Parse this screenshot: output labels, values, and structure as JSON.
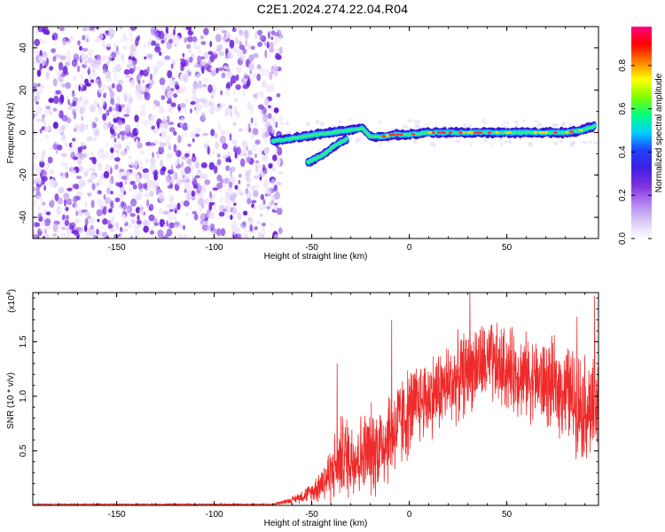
{
  "title": "C2E1.2024.274.22.04.R04",
  "colors": {
    "snr_line": "#ee2a2a",
    "background": "#ffffff",
    "axis": "#000000",
    "colormap": [
      "#ffffff",
      "#d8c8f5",
      "#b080f0",
      "#8030e0",
      "#4020e0",
      "#2040ff",
      "#00d0ff",
      "#00ff80",
      "#80ff00",
      "#ffff00",
      "#ff8000",
      "#ff0000",
      "#ff0080"
    ]
  },
  "chart_data": [
    {
      "type": "heatmap",
      "id": "spectrogram",
      "title": "",
      "xlabel": "Height of straight line (km)",
      "ylabel": "Frequency (Hz)",
      "xlim": [
        -193,
        97
      ],
      "ylim": [
        -50,
        50
      ],
      "x_ticks": [
        -150,
        -100,
        -50,
        0,
        50
      ],
      "y_ticks": [
        -40,
        -20,
        0,
        20,
        40
      ],
      "grid": false,
      "colorbar": {
        "label": "Normalized spectral amplitude",
        "range": [
          0,
          0.98
        ],
        "ticks": [
          0.0,
          0.2,
          0.4,
          0.6,
          0.8
        ]
      },
      "noise_region_x": [
        -193,
        -70
      ],
      "ridge": [
        {
          "x": -70,
          "y": -4
        },
        {
          "x": -62,
          "y": -3
        },
        {
          "x": -55,
          "y": -2
        },
        {
          "x": -48,
          "y": -1
        },
        {
          "x": -40,
          "y": 0
        },
        {
          "x": -32,
          "y": 1
        },
        {
          "x": -24,
          "y": 2
        },
        {
          "x": -20,
          "y": -2
        },
        {
          "x": -15,
          "y": -2
        },
        {
          "x": -8,
          "y": -1
        },
        {
          "x": 0,
          "y": -1
        },
        {
          "x": 10,
          "y": 0
        },
        {
          "x": 20,
          "y": 0
        },
        {
          "x": 30,
          "y": 0
        },
        {
          "x": 40,
          "y": 0
        },
        {
          "x": 50,
          "y": 0
        },
        {
          "x": 60,
          "y": 0
        },
        {
          "x": 70,
          "y": 0
        },
        {
          "x": 80,
          "y": 0
        },
        {
          "x": 88,
          "y": 1
        },
        {
          "x": 95,
          "y": 3
        }
      ],
      "secondary_ridge": [
        {
          "x": -52,
          "y": -14
        },
        {
          "x": -45,
          "y": -11
        },
        {
          "x": -38,
          "y": -6
        },
        {
          "x": -32,
          "y": -3
        }
      ]
    },
    {
      "type": "line",
      "id": "snr",
      "title": "",
      "xlabel": "Height of straight line (km)",
      "ylabel": "SNR (10 * v/v)",
      "multiplier_label": "(x10",
      "multiplier_exp": "4",
      "xlim": [
        -193,
        97
      ],
      "ylim": [
        0,
        1.95
      ],
      "x_ticks": [
        -150,
        -100,
        -50,
        0,
        50
      ],
      "y_ticks": [
        0.5,
        1.0,
        1.5
      ],
      "y_tick_labels": [
        "0.5",
        "1.0",
        "1.5"
      ],
      "grid": false,
      "series": [
        {
          "envelope": [
            {
              "x": -193,
              "mean": 0.01,
              "amp": 0.005
            },
            {
              "x": -70,
              "mean": 0.01,
              "amp": 0.005
            },
            {
              "x": -60,
              "mean": 0.05,
              "amp": 0.03
            },
            {
              "x": -50,
              "mean": 0.12,
              "amp": 0.08
            },
            {
              "x": -40,
              "mean": 0.3,
              "amp": 0.25
            },
            {
              "x": -35,
              "mean": 0.45,
              "amp": 0.35
            },
            {
              "x": -25,
              "mean": 0.45,
              "amp": 0.35
            },
            {
              "x": -15,
              "mean": 0.55,
              "amp": 0.4
            },
            {
              "x": -5,
              "mean": 0.75,
              "amp": 0.4
            },
            {
              "x": 5,
              "mean": 0.95,
              "amp": 0.35
            },
            {
              "x": 20,
              "mean": 1.1,
              "amp": 0.35
            },
            {
              "x": 35,
              "mean": 1.3,
              "amp": 0.35
            },
            {
              "x": 50,
              "mean": 1.25,
              "amp": 0.35
            },
            {
              "x": 65,
              "mean": 1.15,
              "amp": 0.35
            },
            {
              "x": 80,
              "mean": 1.05,
              "amp": 0.4
            },
            {
              "x": 90,
              "mean": 0.9,
              "amp": 0.45
            },
            {
              "x": 97,
              "mean": 0.85,
              "amp": 0.45
            }
          ],
          "peaks": [
            {
              "x": 31,
              "y": 1.95
            },
            {
              "x": 86,
              "y": 1.73
            },
            {
              "x": 95,
              "y": 1.92
            },
            {
              "x": -9,
              "y": 1.7
            },
            {
              "x": -37,
              "y": 1.3
            },
            {
              "x": 42,
              "y": 1.65
            }
          ]
        }
      ]
    }
  ]
}
